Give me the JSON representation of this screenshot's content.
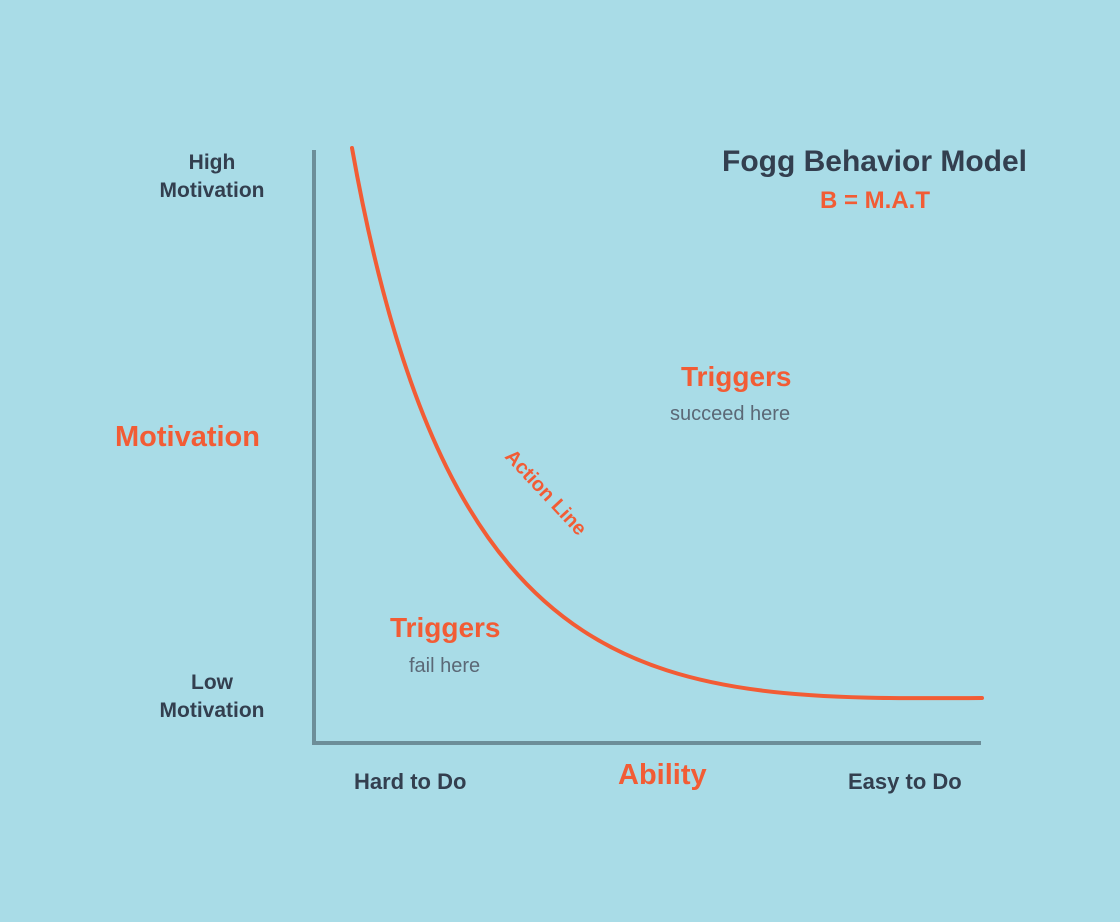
{
  "title": "Fogg Behavior Model",
  "formula": "B = M.A.T",
  "y_axis": {
    "label": "Motivation",
    "high_line1": "High",
    "high_line2": "Motivation",
    "low_line1": "Low",
    "low_line2": "Motivation"
  },
  "x_axis": {
    "label": "Ability",
    "left": "Hard to Do",
    "right": "Easy to Do"
  },
  "curve": {
    "label": "Action Line"
  },
  "regions": {
    "success_title": "Triggers",
    "success_subtitle": "succeed here",
    "fail_title": "Triggers",
    "fail_subtitle": "fail here"
  },
  "colors": {
    "background": "#a9dce7",
    "axis": "#6d8e99",
    "accent": "#f25c35",
    "text": "#333f4f"
  }
}
